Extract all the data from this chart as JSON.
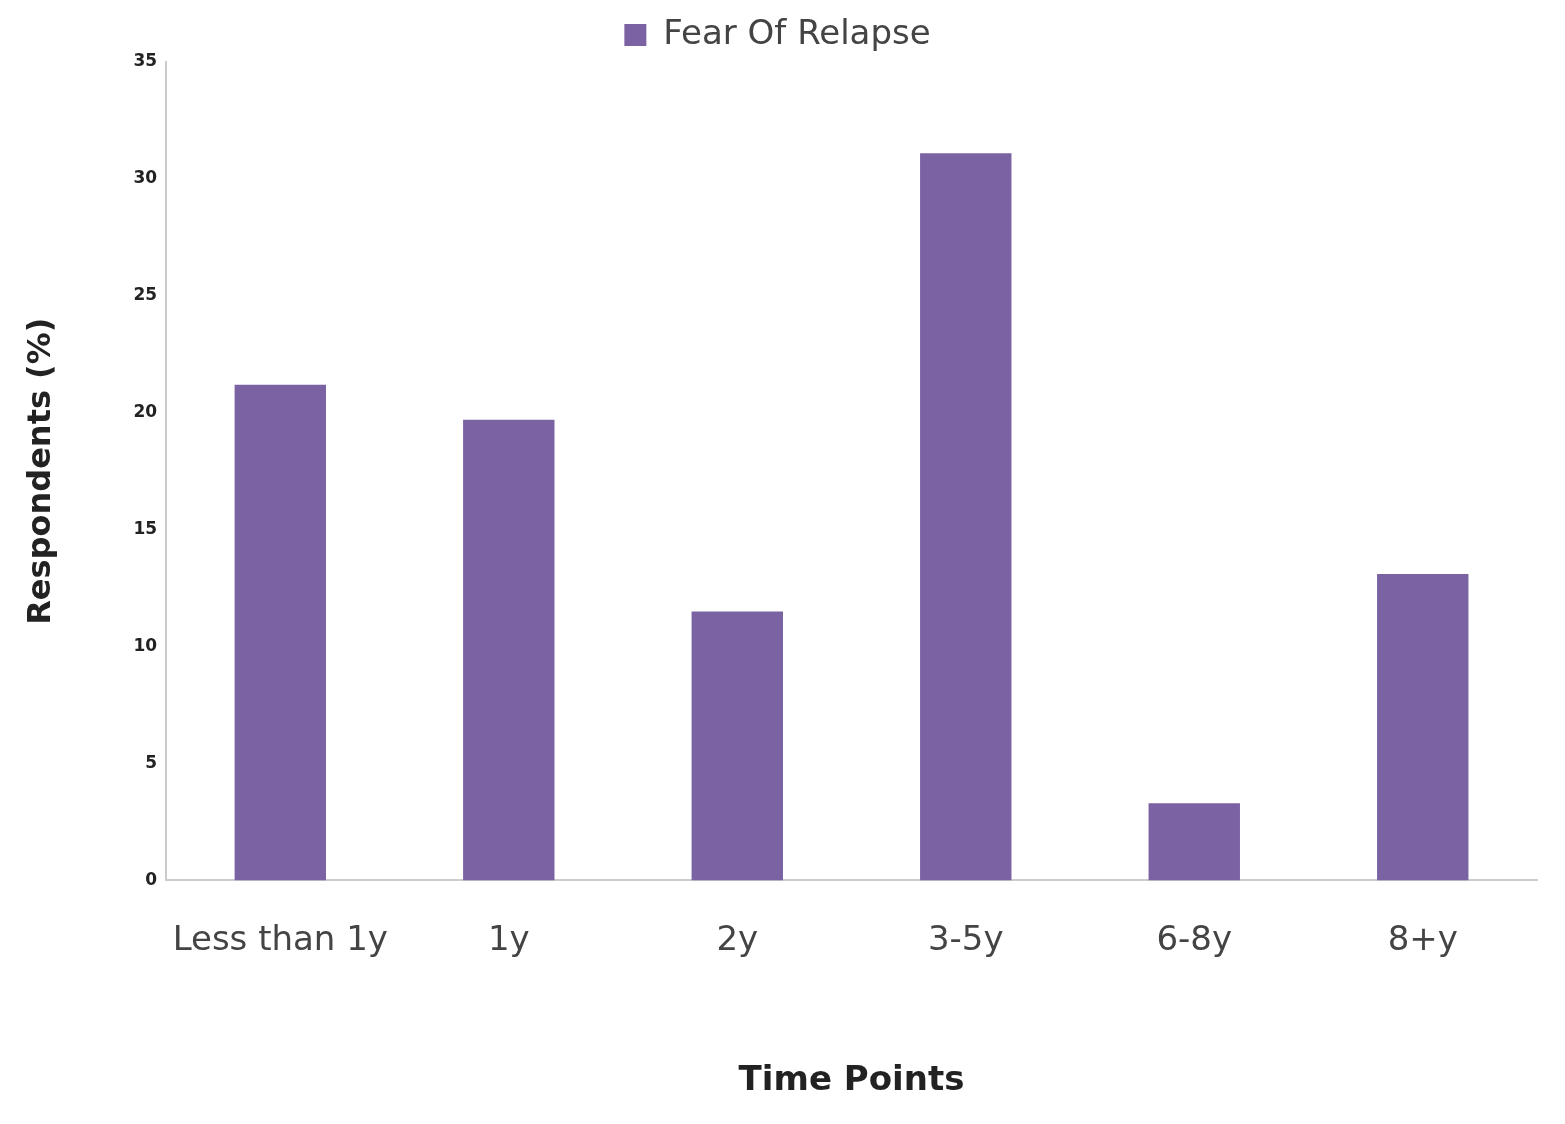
{
  "chart_data": {
    "type": "bar",
    "xlabel": "Time Points",
    "ylabel": "Respondents (%)",
    "categories": [
      "Less than 1y",
      "1y",
      "2y",
      "3-5y",
      "6-8y",
      "8+y"
    ],
    "series": [
      {
        "name": "Fear Of Relapse",
        "color": "#7b62a3",
        "values": [
          21.2,
          19.7,
          11.5,
          31.1,
          3.3,
          13.1
        ]
      }
    ],
    "ylim": [
      0,
      35
    ],
    "yticks": [
      0,
      5,
      10,
      15,
      20,
      25,
      30,
      35
    ],
    "grid": false,
    "legend": "top"
  }
}
